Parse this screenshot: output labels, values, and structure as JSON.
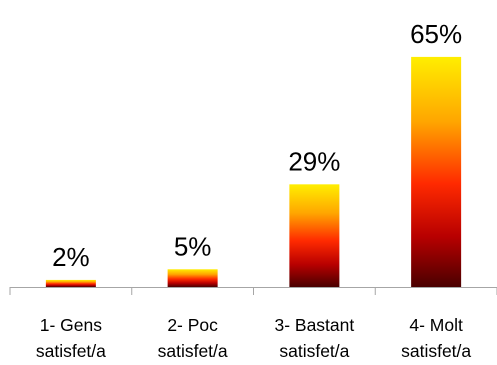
{
  "chart_data": {
    "type": "bar",
    "categories": [
      [
        "1- Gens",
        "satisfet/a"
      ],
      [
        "2- Poc",
        "satisfet/a"
      ],
      [
        "3- Bastant",
        "satisfet/a"
      ],
      [
        "4- Molt",
        "satisfet/a"
      ]
    ],
    "values": [
      2,
      5,
      29,
      65
    ],
    "data_labels": [
      "2%",
      "5%",
      "29%",
      "65%"
    ],
    "unit": "%",
    "ylim": [
      0,
      72
    ],
    "grid": false,
    "legend": "none",
    "title": "",
    "xlabel": "",
    "ylabel": "",
    "colors": {
      "gradient_top": "#ffee00",
      "gradient_mid_high": "#ffa600",
      "gradient_mid": "#ff2a00",
      "gradient_low": "#b80000",
      "gradient_bottom": "#4a0000",
      "axis": "#a6a6a6"
    }
  }
}
